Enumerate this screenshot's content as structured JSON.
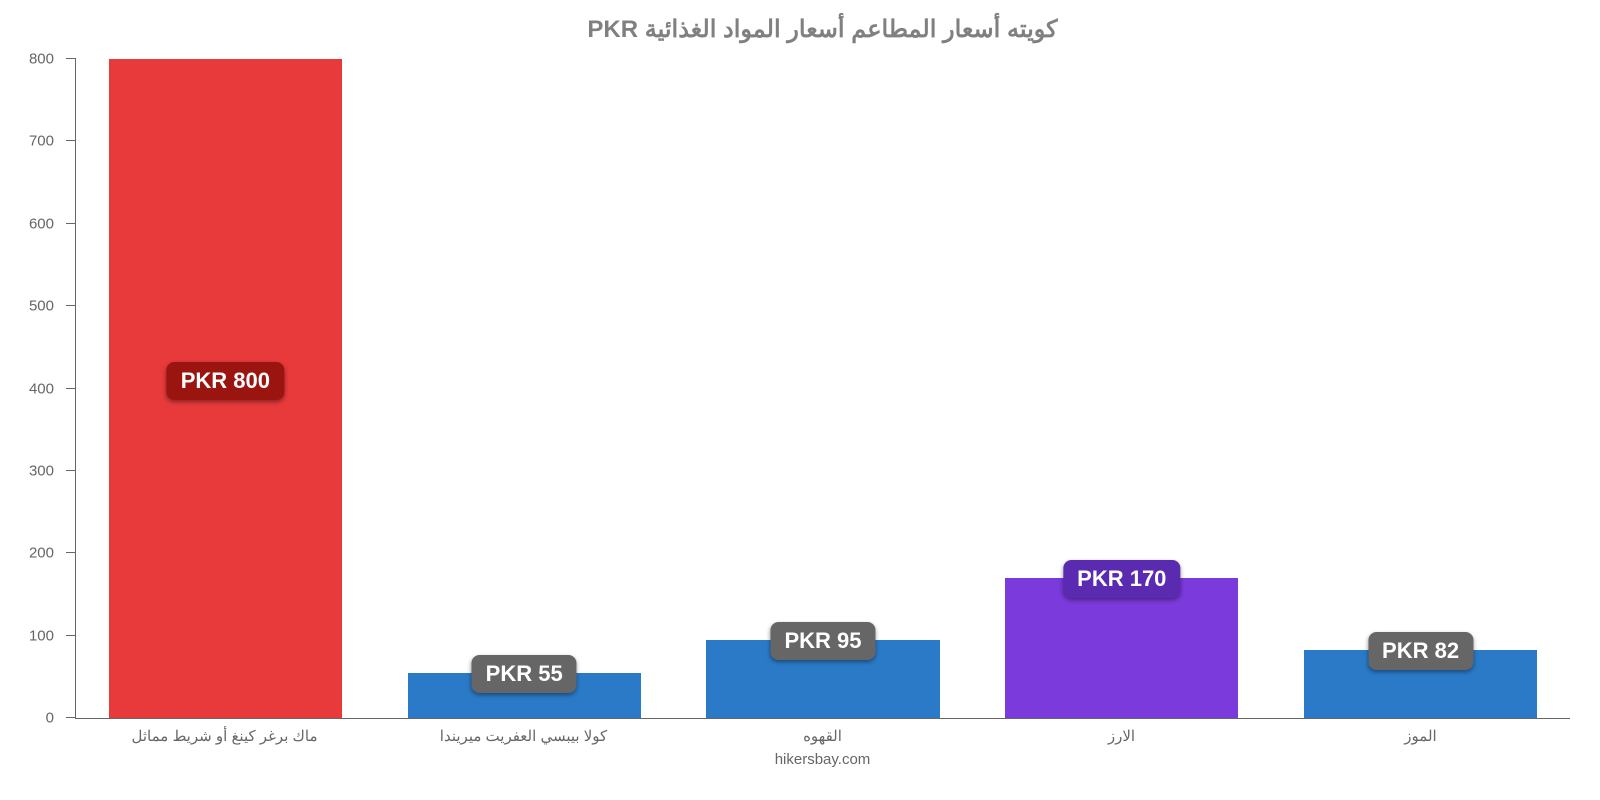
{
  "chart": {
    "type": "bar",
    "title": "كويته أسعار المطاعم أسعار المواد الغذائية PKR",
    "title_fontsize": 24,
    "title_color": "#808080",
    "background_color": "#ffffff",
    "axis_color": "#666666",
    "label_color": "#666666",
    "ylim": [
      0,
      800
    ],
    "ytick_step": 100,
    "yticks": [
      0,
      100,
      200,
      300,
      400,
      500,
      600,
      700,
      800
    ],
    "bar_width": 0.78,
    "categories": [
      "ماك برغر كينغ أو شريط مماثل",
      "كولا بيبسي العفريت ميريندا",
      "القهوه",
      "الارز",
      "الموز"
    ],
    "values": [
      800,
      55,
      95,
      170,
      82
    ],
    "value_labels": [
      "PKR 800",
      "PKR 55",
      "PKR 95",
      "PKR 170",
      "PKR 82"
    ],
    "bar_colors": [
      "#e83a3a",
      "#2a7ac7",
      "#2a7ac7",
      "#7b3adc",
      "#2a7ac7"
    ],
    "badge_colors": [
      "#9b1510",
      "#666666",
      "#666666",
      "#5a2ab0",
      "#666666"
    ],
    "badge_fontsize": 22,
    "xlabel_fontsize": 15,
    "footer": "hikersbay.com"
  }
}
